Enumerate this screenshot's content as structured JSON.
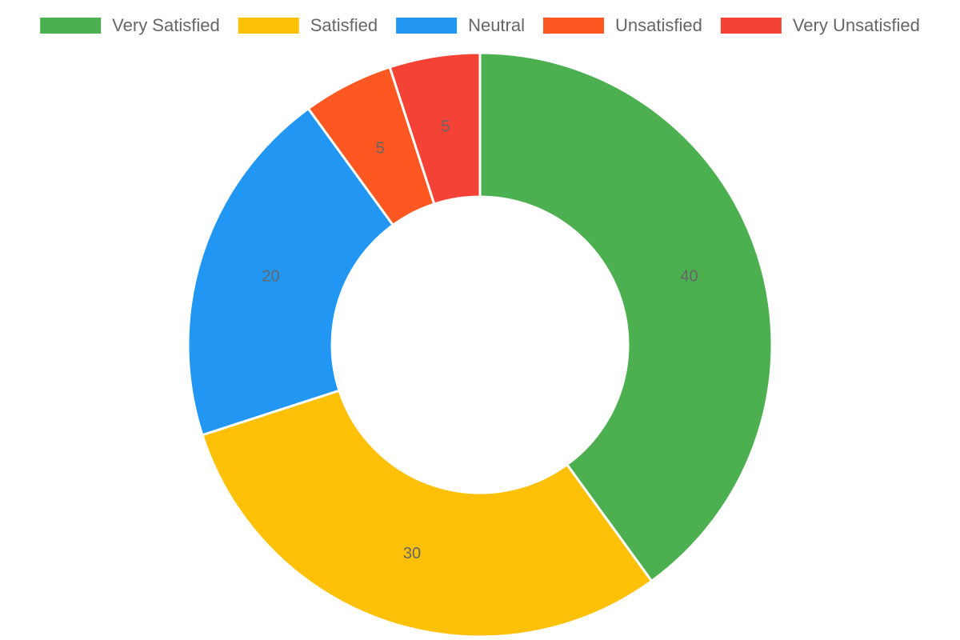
{
  "chart_data": {
    "type": "doughnut",
    "categories": [
      "Very Satisfied",
      "Satisfied",
      "Neutral",
      "Unsatisfied",
      "Very Unsatisfied"
    ],
    "values": [
      40,
      30,
      20,
      5,
      5
    ],
    "colors": [
      "#4caf50",
      "#ffc107",
      "#2196f3",
      "#ff5722",
      "#f44336"
    ],
    "legend": "top"
  }
}
